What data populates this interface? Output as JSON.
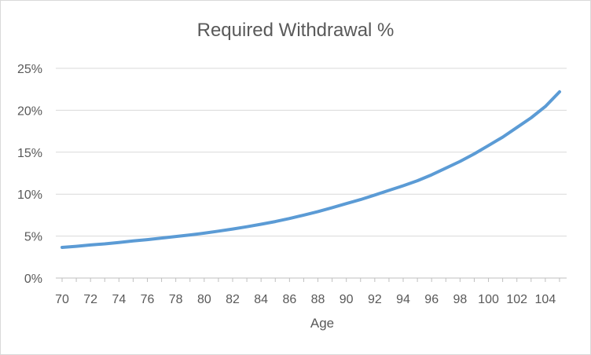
{
  "chart_data": {
    "type": "line",
    "title": "Required Withdrawal %",
    "xlabel": "Age",
    "ylabel": "",
    "x": [
      70,
      71,
      72,
      73,
      74,
      75,
      76,
      77,
      78,
      79,
      80,
      81,
      82,
      83,
      84,
      85,
      86,
      87,
      88,
      89,
      90,
      91,
      92,
      93,
      94,
      95,
      96,
      97,
      98,
      99,
      100,
      101,
      102,
      103,
      104,
      105
    ],
    "series": [
      {
        "name": "",
        "color": "#5b9bd5",
        "values": [
          3.65,
          3.78,
          3.94,
          4.07,
          4.24,
          4.42,
          4.58,
          4.77,
          4.95,
          5.14,
          5.35,
          5.59,
          5.84,
          6.11,
          6.41,
          6.73,
          7.1,
          7.5,
          7.92,
          8.39,
          8.88,
          9.35,
          9.9,
          10.45,
          11.0,
          11.6,
          12.3,
          13.1,
          13.9,
          14.8,
          15.8,
          16.8,
          17.95,
          19.1,
          20.45,
          22.2
        ]
      }
    ],
    "xticks": [
      "70",
      "72",
      "74",
      "76",
      "78",
      "80",
      "82",
      "84",
      "86",
      "88",
      "90",
      "92",
      "94",
      "96",
      "98",
      "100",
      "102",
      "104"
    ],
    "yticks": [
      "0%",
      "5%",
      "10%",
      "15%",
      "20%",
      "25%"
    ],
    "xlim": [
      70,
      105.5
    ],
    "ylim": [
      0,
      25
    ],
    "grid": "horizontal",
    "legend": "none"
  }
}
